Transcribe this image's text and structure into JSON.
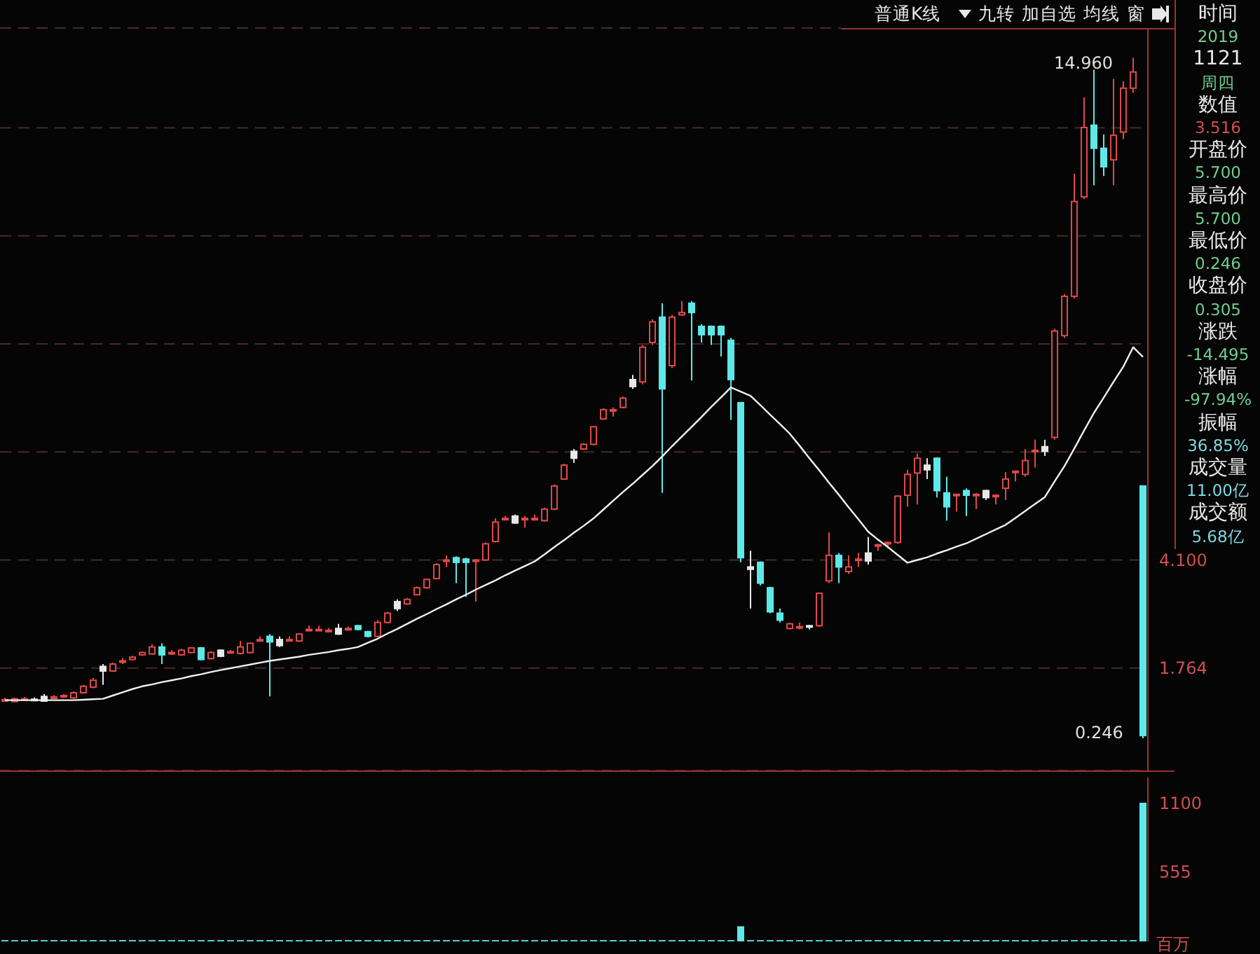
{
  "chart_data": [
    {
      "type": "candlestick",
      "categories": [
        null,
        null,
        null,
        null,
        null,
        null,
        null,
        null,
        null,
        null,
        null,
        null,
        null,
        null,
        null,
        null,
        null,
        null,
        null,
        null,
        null,
        null,
        null,
        null,
        null,
        null,
        null,
        null,
        null,
        null,
        null,
        null,
        null,
        null,
        null,
        null,
        null,
        null,
        null,
        null,
        null,
        null,
        null,
        null,
        null,
        null,
        null,
        null,
        null,
        null,
        null,
        null,
        null,
        null,
        null,
        null,
        null,
        null,
        null,
        null,
        null,
        null,
        null,
        null,
        null,
        null,
        null,
        null,
        null,
        null,
        null,
        null,
        null,
        null,
        null,
        null,
        null,
        null,
        null,
        null,
        null,
        null,
        null,
        null,
        null,
        null,
        null,
        null,
        null,
        null,
        null,
        null,
        null,
        null,
        null,
        null,
        null,
        null,
        null,
        null,
        null,
        null,
        null,
        null,
        null,
        null,
        null,
        null,
        null,
        null,
        null,
        null,
        null,
        null,
        null,
        null,
        null
      ],
      "ohlc": [
        [
          1.06,
          1.12,
          1.04,
          1.08
        ],
        [
          1.04,
          1.12,
          1.03,
          1.1
        ],
        [
          1.09,
          1.14,
          1.07,
          1.1
        ],
        [
          1.09,
          1.13,
          1.06,
          1.09
        ],
        [
          1.15,
          1.2,
          1.04,
          1.05
        ],
        [
          1.13,
          1.18,
          1.12,
          1.14
        ],
        [
          1.16,
          1.2,
          1.15,
          1.17
        ],
        [
          1.12,
          1.26,
          1.1,
          1.23
        ],
        [
          1.23,
          1.4,
          1.21,
          1.37
        ],
        [
          1.35,
          1.55,
          1.33,
          1.5
        ],
        [
          1.8,
          1.85,
          1.4,
          1.7
        ],
        [
          1.7,
          1.88,
          1.68,
          1.85
        ],
        [
          1.91,
          1.98,
          1.85,
          1.92
        ],
        [
          1.95,
          2.03,
          1.93,
          2.0
        ],
        [
          2.05,
          2.12,
          2.03,
          2.1
        ],
        [
          2.07,
          2.28,
          2.05,
          2.22
        ],
        [
          2.22,
          2.3,
          1.85,
          2.05
        ],
        [
          2.09,
          2.15,
          2.05,
          2.1
        ],
        [
          2.05,
          2.18,
          2.03,
          2.15
        ],
        [
          2.1,
          2.22,
          2.08,
          2.2
        ],
        [
          2.2,
          2.22,
          1.93,
          1.95
        ],
        [
          1.97,
          2.13,
          1.95,
          2.1
        ],
        [
          2.15,
          2.17,
          2.0,
          2.02
        ],
        [
          2.11,
          2.16,
          2.08,
          2.12
        ],
        [
          2.08,
          2.35,
          2.06,
          2.22
        ],
        [
          2.1,
          2.32,
          2.08,
          2.3
        ],
        [
          2.37,
          2.45,
          2.35,
          2.38
        ],
        [
          2.45,
          2.5,
          1.15,
          2.33
        ],
        [
          2.38,
          2.45,
          2.22,
          2.25
        ],
        [
          2.37,
          2.45,
          2.35,
          2.38
        ],
        [
          2.35,
          2.52,
          2.33,
          2.5
        ],
        [
          2.59,
          2.68,
          2.57,
          2.6
        ],
        [
          2.59,
          2.68,
          2.57,
          2.6
        ],
        [
          2.57,
          2.63,
          2.54,
          2.58
        ],
        [
          2.62,
          2.72,
          2.48,
          2.5
        ],
        [
          2.61,
          2.66,
          2.58,
          2.62
        ],
        [
          2.68,
          2.7,
          2.58,
          2.6
        ],
        [
          2.55,
          2.57,
          2.43,
          2.45
        ],
        [
          2.45,
          2.8,
          2.43,
          2.75
        ],
        [
          2.75,
          2.98,
          2.73,
          2.95
        ],
        [
          3.2,
          3.25,
          3.0,
          3.05
        ],
        [
          3.15,
          3.28,
          3.13,
          3.25
        ],
        [
          3.35,
          3.53,
          3.33,
          3.5
        ],
        [
          3.5,
          3.7,
          3.48,
          3.68
        ],
        [
          3.7,
          4.03,
          3.68,
          4.0
        ],
        [
          4.09,
          4.2,
          3.95,
          4.1
        ],
        [
          4.15,
          4.18,
          3.6,
          4.05
        ],
        [
          4.12,
          4.15,
          3.3,
          4.05
        ],
        [
          4.08,
          4.12,
          3.2,
          4.1
        ],
        [
          4.1,
          4.48,
          4.08,
          4.45
        ],
        [
          4.5,
          5.0,
          4.48,
          4.92
        ],
        [
          4.99,
          5.05,
          4.95,
          5.0
        ],
        [
          5.05,
          5.08,
          4.88,
          4.9
        ],
        [
          4.99,
          5.05,
          4.8,
          5.0
        ],
        [
          4.99,
          5.08,
          4.95,
          5.0
        ],
        [
          4.95,
          5.23,
          4.93,
          5.2
        ],
        [
          5.2,
          5.73,
          5.18,
          5.7
        ],
        [
          5.85,
          6.18,
          5.83,
          6.15
        ],
        [
          6.45,
          6.5,
          6.2,
          6.3
        ],
        [
          6.5,
          6.63,
          6.48,
          6.6
        ],
        [
          6.6,
          7.0,
          6.58,
          6.98
        ],
        [
          7.15,
          7.38,
          7.13,
          7.35
        ],
        [
          7.34,
          7.4,
          7.2,
          7.35
        ],
        [
          7.4,
          7.63,
          7.38,
          7.6
        ],
        [
          8.0,
          8.1,
          7.8,
          7.85
        ],
        [
          7.95,
          8.75,
          7.9,
          8.7
        ],
        [
          8.8,
          9.3,
          8.75,
          9.25
        ],
        [
          9.35,
          9.65,
          5.55,
          7.8
        ],
        [
          8.3,
          9.4,
          8.25,
          9.35
        ],
        [
          9.4,
          9.7,
          9.38,
          9.45
        ],
        [
          9.65,
          9.7,
          7.98,
          9.45
        ],
        [
          9.15,
          9.2,
          8.8,
          8.97
        ],
        [
          9.15,
          9.17,
          8.75,
          8.97
        ],
        [
          9.15,
          9.17,
          8.5,
          8.97
        ],
        [
          8.85,
          8.9,
          7.13,
          8.0
        ],
        [
          7.5,
          7.52,
          4.05,
          4.15
        ],
        [
          3.95,
          4.3,
          3.05,
          3.9
        ],
        [
          4.05,
          4.07,
          3.55,
          3.6
        ],
        [
          3.5,
          3.52,
          2.95,
          2.98
        ],
        [
          2.95,
          3.05,
          2.75,
          2.8
        ],
        [
          2.62,
          2.75,
          2.6,
          2.72
        ],
        [
          2.65,
          2.75,
          2.6,
          2.66
        ],
        [
          2.68,
          2.7,
          2.6,
          2.65
        ],
        [
          2.68,
          3.4,
          2.65,
          3.38
        ],
        [
          3.65,
          4.7,
          3.6,
          4.2
        ],
        [
          4.2,
          4.25,
          3.6,
          3.95
        ],
        [
          3.85,
          4.2,
          3.8,
          3.95
        ],
        [
          4.1,
          4.25,
          3.95,
          4.12
        ],
        [
          4.25,
          4.6,
          4.0,
          4.08
        ],
        [
          4.42,
          4.45,
          4.3,
          4.43
        ],
        [
          4.47,
          4.5,
          4.35,
          4.48
        ],
        [
          4.48,
          5.5,
          4.45,
          5.48
        ],
        [
          5.5,
          6.05,
          5.25,
          5.95
        ],
        [
          5.98,
          6.4,
          5.3,
          6.3
        ],
        [
          6.15,
          6.3,
          5.85,
          6.05
        ],
        [
          6.3,
          6.32,
          5.45,
          5.6
        ],
        [
          5.55,
          5.9,
          4.95,
          5.25
        ],
        [
          5.5,
          5.53,
          5.15,
          5.52
        ],
        [
          5.6,
          5.65,
          5.05,
          5.5
        ],
        [
          5.5,
          5.55,
          5.2,
          5.52
        ],
        [
          5.6,
          5.62,
          5.4,
          5.45
        ],
        [
          5.49,
          5.52,
          5.3,
          5.5
        ],
        [
          5.65,
          6.0,
          5.4,
          5.85
        ],
        [
          6.0,
          6.03,
          5.8,
          6.02
        ],
        [
          5.95,
          6.5,
          5.9,
          6.25
        ],
        [
          6.45,
          6.7,
          6.1,
          6.47
        ],
        [
          6.55,
          6.7,
          6.35,
          6.45
        ],
        [
          6.75,
          9.1,
          6.7,
          9.05
        ],
        [
          8.95,
          9.85,
          8.9,
          9.8
        ],
        [
          9.8,
          12.45,
          9.75,
          11.85
        ],
        [
          11.95,
          14.1,
          11.9,
          13.45
        ],
        [
          13.5,
          14.7,
          12.2,
          13.0
        ],
        [
          13.0,
          13.3,
          12.4,
          12.6
        ],
        [
          12.75,
          14.5,
          12.2,
          13.28
        ],
        [
          13.35,
          14.45,
          13.2,
          14.3
        ],
        [
          14.3,
          14.96,
          14.2,
          14.65
        ],
        [
          5.7,
          5.7,
          0.246,
          0.305
        ]
      ],
      "colors": [
        "#e04848",
        "#e04848",
        "#e04848",
        "#e8e8e8",
        "#e8e8e8",
        "#e04848",
        "#e04848",
        "#e04848",
        "#e04848",
        "#e04848",
        "#e8e8e8",
        "#e04848",
        "#e04848",
        "#e04848",
        "#e04848",
        "#e04848",
        "#5ee8e8",
        "#e04848",
        "#e04848",
        "#e04848",
        "#5ee8e8",
        "#e04848",
        "#e8e8e8",
        "#e04848",
        "#e04848",
        "#e04848",
        "#e04848",
        "#5ee8e8",
        "#e8e8e8",
        "#e04848",
        "#e04848",
        "#e04848",
        "#e04848",
        "#e04848",
        "#e8e8e8",
        "#e04848",
        "#5ee8e8",
        "#5ee8e8",
        "#e04848",
        "#e04848",
        "#e8e8e8",
        "#e04848",
        "#e04848",
        "#e04848",
        "#e04848",
        "#e04848",
        "#5ee8e8",
        "#5ee8e8",
        "#e04848",
        "#e04848",
        "#e04848",
        "#e04848",
        "#e8e8e8",
        "#e04848",
        "#e04848",
        "#e04848",
        "#e04848",
        "#e04848",
        "#e8e8e8",
        "#e04848",
        "#e04848",
        "#e04848",
        "#e04848",
        "#e04848",
        "#e8e8e8",
        "#e04848",
        "#e04848",
        "#5ee8e8",
        "#e04848",
        "#e04848",
        "#5ee8e8",
        "#5ee8e8",
        "#5ee8e8",
        "#5ee8e8",
        "#5ee8e8",
        "#5ee8e8",
        "#e8e8e8",
        "#5ee8e8",
        "#5ee8e8",
        "#5ee8e8",
        "#e04848",
        "#e04848",
        "#e8e8e8",
        "#e04848",
        "#e04848",
        "#5ee8e8",
        "#e04848",
        "#e04848",
        "#e8e8e8",
        "#e04848",
        "#e04848",
        "#e04848",
        "#e04848",
        "#e04848",
        "#e8e8e8",
        "#5ee8e8",
        "#5ee8e8",
        "#e04848",
        "#5ee8e8",
        "#e04848",
        "#e8e8e8",
        "#e04848",
        "#e04848",
        "#e04848",
        "#e04848",
        "#e04848",
        "#e8e8e8",
        "#e04848",
        "#e04848",
        "#e04848",
        "#e04848",
        "#5ee8e8",
        "#5ee8e8",
        "#e04848",
        "#e04848",
        "#e04848",
        "#5ee8e8"
      ],
      "series": [
        {
          "type": "line",
          "color": "#f0f0f0",
          "values": [
            1.07,
            1.07,
            1.07,
            1.07,
            1.07,
            1.07,
            1.07,
            1.07,
            1.08,
            1.09,
            1.1,
            1.17,
            1.24,
            1.31,
            1.37,
            1.41,
            1.46,
            1.5,
            1.54,
            1.59,
            1.63,
            1.68,
            1.72,
            1.76,
            1.8,
            1.84,
            1.88,
            1.92,
            1.95,
            1.98,
            2.01,
            2.05,
            2.08,
            2.11,
            2.15,
            2.18,
            2.22,
            2.31,
            2.4,
            2.51,
            2.61,
            2.72,
            2.83,
            2.93,
            3.04,
            3.14,
            3.25,
            3.35,
            3.46,
            3.56,
            3.66,
            3.77,
            3.87,
            3.97,
            4.07,
            4.22,
            4.38,
            4.53,
            4.69,
            4.84,
            5.0,
            5.19,
            5.38,
            5.57,
            5.75,
            5.94,
            6.13,
            6.34,
            6.56,
            6.77,
            6.98,
            7.19,
            7.41,
            7.62,
            7.83,
            7.74,
            7.65,
            7.45,
            7.24,
            7.04,
            6.83,
            6.57,
            6.3,
            6.04,
            5.77,
            5.51,
            5.24,
            4.98,
            4.71,
            4.54,
            4.38,
            4.21,
            4.04,
            4.1,
            4.16,
            4.24,
            4.31,
            4.39,
            4.46,
            4.56,
            4.66,
            4.76,
            4.86,
            5.01,
            5.16,
            5.31,
            5.46,
            5.8,
            6.13,
            6.51,
            6.9,
            7.28,
            7.61,
            7.95,
            8.28,
            8.7,
            8.49
          ]
        }
      ],
      "ylim": [
        -0.45,
        15.6
      ],
      "yticks": [
        1.764,
        {
          "value": 4.1,
          "label": "4.100"
        },
        {
          "value": 6.436,
          "label": null
        },
        {
          "value": 8.772,
          "label": null
        },
        {
          "value": 11.108,
          "label": null
        },
        {
          "value": 13.444,
          "label": null
        }
      ],
      "grid": "y",
      "tick_labels": "y",
      "marker": "none",
      "annotations": [
        "普通K线",
        "九转",
        "加自选",
        "均线",
        "窗",
        "14.960",
        "0.246"
      ]
    },
    {
      "type": "bar",
      "categories": [
        null,
        null,
        null,
        null,
        null,
        null,
        null,
        null,
        null,
        null,
        null,
        null,
        null,
        null,
        null,
        null,
        null,
        null,
        null,
        null,
        null,
        null,
        null,
        null,
        null,
        null,
        null,
        null,
        null,
        null,
        null,
        null,
        null,
        null,
        null,
        null,
        null,
        null,
        null,
        null,
        null,
        null,
        null,
        null,
        null,
        null,
        null,
        null,
        null,
        null,
        null,
        null,
        null,
        null,
        null,
        null,
        null,
        null,
        null,
        null,
        null,
        null,
        null,
        null,
        null,
        null,
        null,
        null,
        null,
        null,
        null,
        null,
        null,
        null,
        null,
        null,
        null,
        null,
        null,
        null,
        null,
        null,
        null,
        null,
        null,
        null,
        null,
        null,
        null,
        null,
        null,
        null,
        null,
        null,
        null,
        null,
        null,
        null,
        null,
        null,
        null,
        null,
        null,
        null,
        null,
        null,
        null,
        null,
        null,
        null,
        null,
        null,
        null,
        null,
        null,
        null,
        null
      ],
      "values": [
        10,
        10,
        10,
        10,
        10,
        10,
        10,
        10,
        10,
        10,
        10,
        10,
        10,
        10,
        10,
        10,
        10,
        10,
        10,
        10,
        10,
        10,
        10,
        10,
        10,
        10,
        10,
        10,
        10,
        10,
        10,
        10,
        10,
        10,
        10,
        10,
        10,
        10,
        10,
        10,
        10,
        10,
        10,
        10,
        10,
        10,
        10,
        10,
        10,
        10,
        10,
        10,
        10,
        10,
        10,
        10,
        10,
        10,
        10,
        10,
        10,
        10,
        10,
        10,
        10,
        10,
        10,
        10,
        10,
        10,
        10,
        10,
        10,
        10,
        10,
        120,
        10,
        10,
        10,
        10,
        10,
        10,
        10,
        10,
        10,
        10,
        10,
        10,
        10,
        10,
        10,
        10,
        10,
        10,
        10,
        10,
        10,
        10,
        10,
        10,
        10,
        10,
        10,
        10,
        10,
        10,
        10,
        10,
        10,
        10,
        10,
        10,
        10,
        10,
        10,
        10,
        1100
      ],
      "color": "#5ee8e8",
      "ylim": [
        0,
        1300
      ],
      "yticks": [
        555,
        1100
      ],
      "ylabel": "百万",
      "tick_labels": "y"
    },
    {
      "type": "other",
      "annotations": [
        "时间",
        "2019",
        "1121",
        "周四",
        "数值",
        "3.516",
        "开盘价",
        "5.700",
        "最高价",
        "5.700",
        "最低价",
        "0.246",
        "收盘价",
        "0.305",
        "涨跌",
        "-14.495",
        "涨幅",
        "-97.94%",
        "振幅",
        "36.85%",
        "成交量",
        "11.00亿",
        "成交额",
        "5.68亿"
      ]
    }
  ]
}
